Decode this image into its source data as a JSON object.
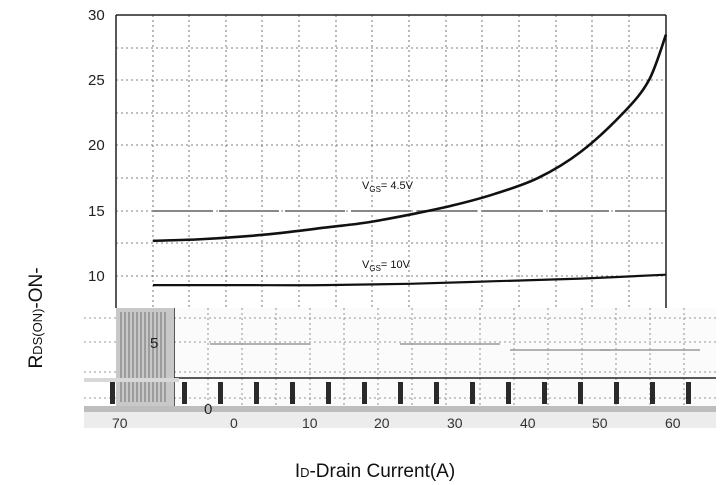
{
  "chart_data": {
    "type": "line",
    "title": "",
    "xlabel_main": "I",
    "xlabel_sub": "D",
    "xlabel_rest": "-Drain Current(A)",
    "ylabel_main": "R",
    "ylabel_sub": "DS(ON)",
    "ylabel_rest": "-ON-",
    "y_ticks": [
      "30",
      "25",
      "20",
      "15",
      "10",
      "5",
      "0"
    ],
    "x_ticks": [
      "70",
      "0",
      "10",
      "20",
      "30",
      "40",
      "50",
      "60"
    ],
    "xlim": [
      0,
      60
    ],
    "ylim": [
      0,
      30
    ],
    "grid": true,
    "series": [
      {
        "name": "V_GS = 4.5V",
        "label_main": "V",
        "label_sub": "GS",
        "label_rest": "= 4.5V",
        "x": [
          0,
          5,
          10,
          15,
          20,
          25,
          30,
          35,
          40,
          45,
          50,
          55,
          58,
          60
        ],
        "values": [
          12.7,
          12.8,
          13.0,
          13.3,
          13.7,
          14.1,
          14.7,
          15.4,
          16.3,
          17.5,
          19.5,
          22.5,
          25.0,
          28.5
        ]
      },
      {
        "name": "V_GS = 10V",
        "label_main": "V",
        "label_sub": "GS",
        "label_rest": "= 10V",
        "x": [
          0,
          10,
          20,
          30,
          40,
          50,
          60
        ],
        "values": [
          9.3,
          9.3,
          9.3,
          9.4,
          9.6,
          9.8,
          10.1
        ]
      }
    ]
  }
}
